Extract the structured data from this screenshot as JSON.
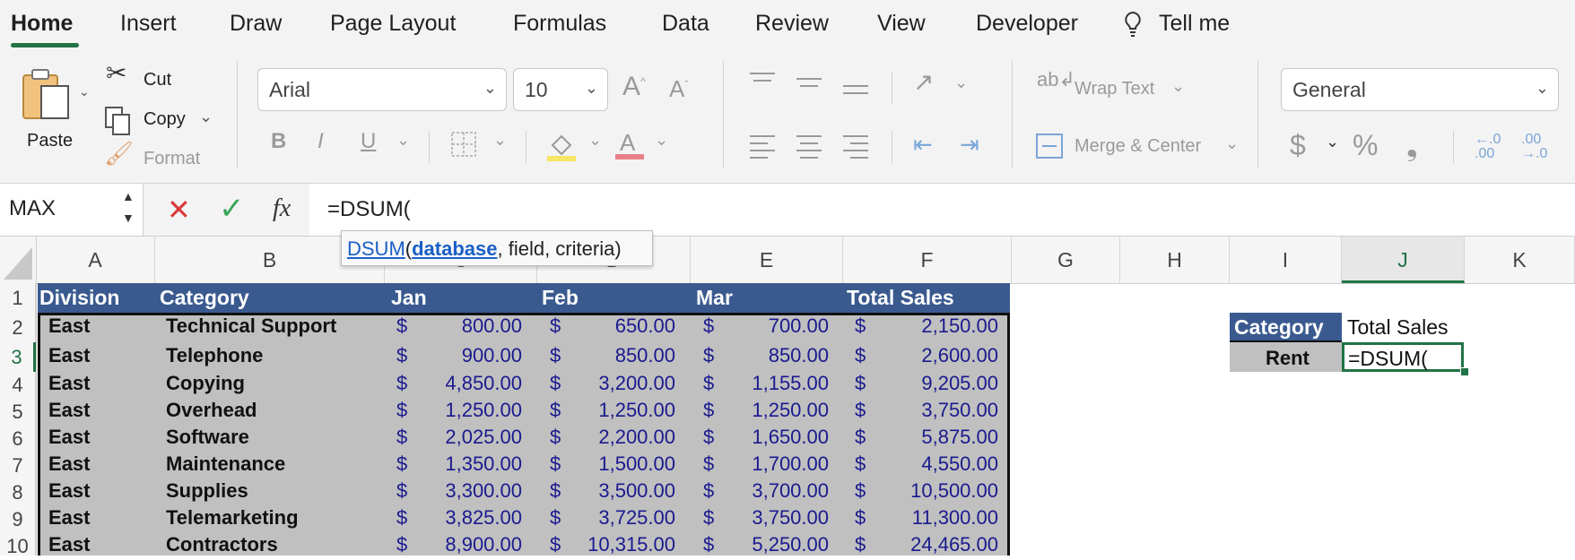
{
  "tabs": [
    "Home",
    "Insert",
    "Draw",
    "Page Layout",
    "Formulas",
    "Data",
    "Review",
    "View",
    "Developer",
    "Tell me"
  ],
  "clipboard": {
    "paste": "Paste",
    "cut": "Cut",
    "copy": "Copy",
    "format": "Format"
  },
  "font": {
    "name": "Arial",
    "size": "10"
  },
  "alignment": {
    "wrap_text": "Wrap Text",
    "merge_center": "Merge & Center"
  },
  "number": {
    "format": "General",
    "currency": "$",
    "percent": "%"
  },
  "formula_bar": {
    "name_box": "MAX",
    "fx": "fx",
    "formula": "=DSUM("
  },
  "tooltip": {
    "func": "DSUM",
    "open": "(",
    "arg1": "database",
    "rest": ", field, criteria)"
  },
  "columns": [
    "A",
    "B",
    "C",
    "D",
    "E",
    "F",
    "G",
    "H",
    "I",
    "J",
    "K"
  ],
  "rows": [
    "1",
    "2",
    "3",
    "4",
    "5",
    "6",
    "7",
    "8",
    "9",
    "10"
  ],
  "table": {
    "headers": [
      "Division",
      "Category",
      "Jan",
      "Feb",
      "Mar",
      "Total Sales"
    ],
    "data": [
      [
        "East",
        "Technical Support",
        "800.00",
        "650.00",
        "700.00",
        "2,150.00"
      ],
      [
        "East",
        "Telephone",
        "900.00",
        "850.00",
        "850.00",
        "2,600.00"
      ],
      [
        "East",
        "Copying",
        "4,850.00",
        "3,200.00",
        "1,155.00",
        "9,205.00"
      ],
      [
        "East",
        "Overhead",
        "1,250.00",
        "1,250.00",
        "1,250.00",
        "3,750.00"
      ],
      [
        "East",
        "Software",
        "2,025.00",
        "2,200.00",
        "1,650.00",
        "5,875.00"
      ],
      [
        "East",
        "Maintenance",
        "1,350.00",
        "1,500.00",
        "1,700.00",
        "4,550.00"
      ],
      [
        "East",
        "Supplies",
        "3,300.00",
        "3,500.00",
        "3,700.00",
        "10,500.00"
      ],
      [
        "East",
        "Telemarketing",
        "3,825.00",
        "3,725.00",
        "3,750.00",
        "11,300.00"
      ],
      [
        "East",
        "Contractors",
        "8,900.00",
        "10,315.00",
        "5,250.00",
        "24,465.00"
      ]
    ]
  },
  "criteria": {
    "header": "Category",
    "value": "Rent",
    "result_header": "Total Sales",
    "result_value": "=DSUM("
  },
  "colors": {
    "header_blue": "#3a5a8f",
    "excel_green": "#217346",
    "data_gray": "#c0c0c0",
    "number_blue": "#1a1a8f"
  }
}
